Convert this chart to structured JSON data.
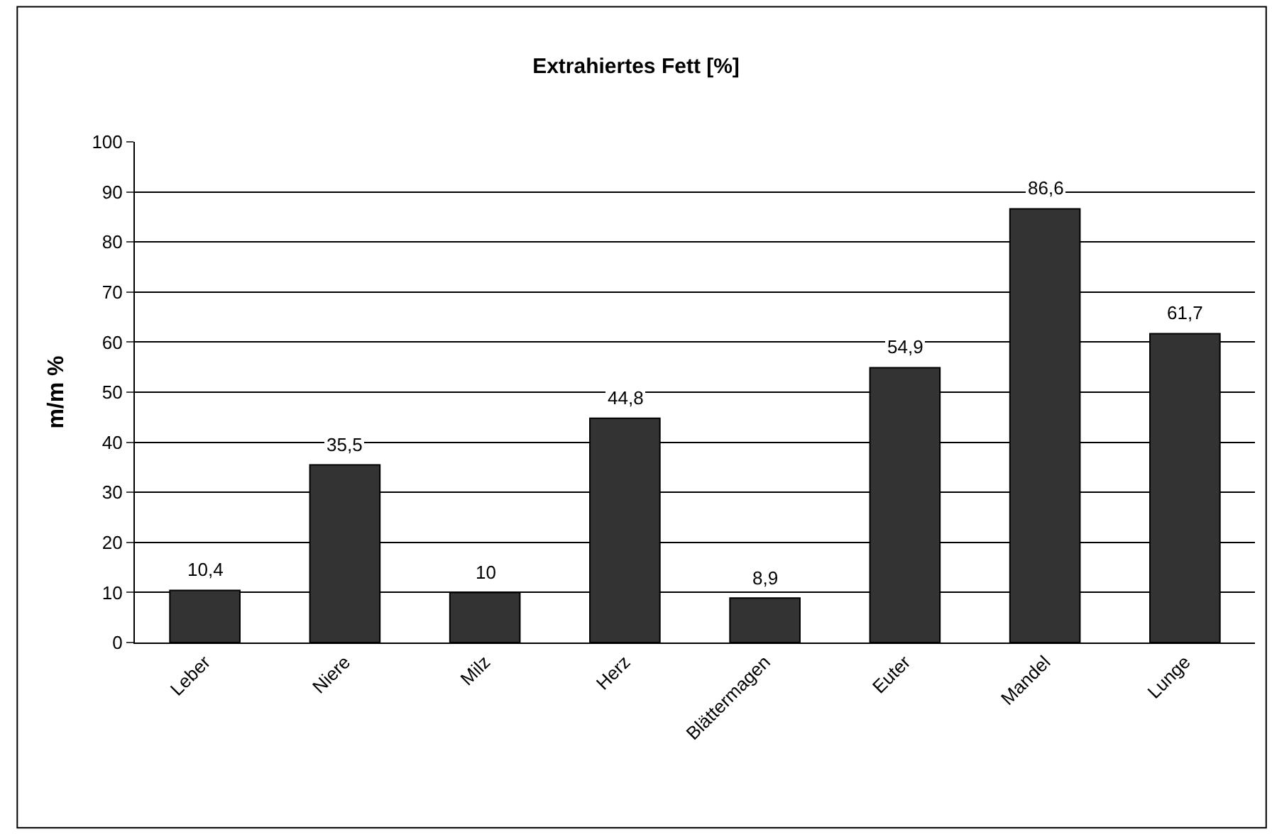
{
  "chart_data": {
    "type": "bar",
    "title": "Extrahiertes Fett [%]",
    "ylabel": "m/m %",
    "categories": [
      "Leber",
      "Niere",
      "Milz",
      "Herz",
      "Blättermagen",
      "Euter",
      "Mandel",
      "Lunge"
    ],
    "values": [
      10.4,
      35.5,
      10,
      44.8,
      8.9,
      54.9,
      86.6,
      61.7
    ],
    "value_labels": [
      "10,4",
      "35,5",
      "10",
      "44,8",
      "8,9",
      "54,9",
      "86,6",
      "61,7"
    ],
    "color": "#333333",
    "ylim": [
      0,
      100
    ],
    "yticks": [
      0,
      10,
      20,
      30,
      40,
      50,
      60,
      70,
      80,
      90,
      100
    ],
    "grid": "y"
  }
}
